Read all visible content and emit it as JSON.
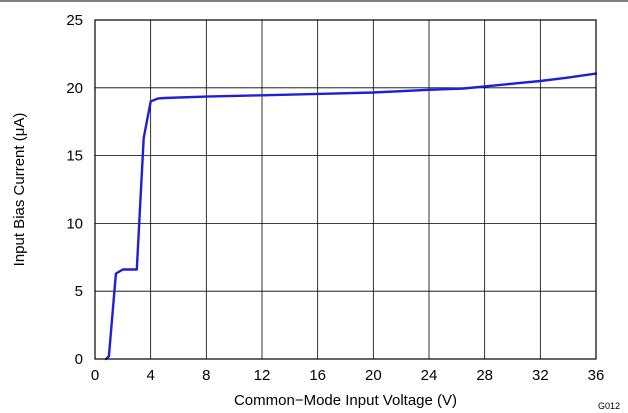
{
  "chart_data": {
    "type": "line",
    "title": "",
    "xlabel": "Common−Mode Input Voltage (V)",
    "ylabel": "Input Bias Current (μA)",
    "xlim": [
      0,
      36
    ],
    "ylim": [
      0,
      25
    ],
    "x_ticks": [
      "0",
      "4",
      "8",
      "12",
      "16",
      "20",
      "24",
      "28",
      "32",
      "36"
    ],
    "y_ticks": [
      "0",
      "5",
      "10",
      "15",
      "20",
      "25"
    ],
    "x_grid_step": 4,
    "y_grid_step": 5,
    "grid": true,
    "legend": "none",
    "annotation": "G012",
    "series": [
      {
        "color": "#1f1fd6",
        "x": [
          0.8,
          1.0,
          1.5,
          2.0,
          3.0,
          3.5,
          4.0,
          4.5,
          5.0,
          8.0,
          12.0,
          16.0,
          20.0,
          24.0,
          26.5,
          28.0,
          30.0,
          32.0,
          34.0,
          36.0
        ],
        "y": [
          0.0,
          0.2,
          6.3,
          6.6,
          6.6,
          16.3,
          19.0,
          19.2,
          19.25,
          19.35,
          19.45,
          19.55,
          19.65,
          19.85,
          19.95,
          20.1,
          20.3,
          20.5,
          20.75,
          21.05
        ]
      }
    ]
  }
}
